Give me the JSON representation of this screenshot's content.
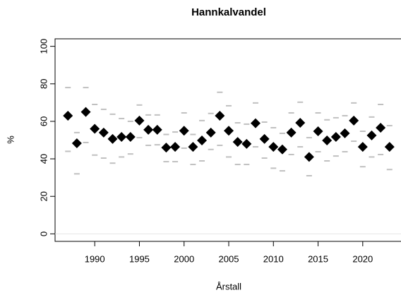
{
  "chart_data": {
    "type": "scatter",
    "title": "Hannkalvandel",
    "xlabel": "Årstall",
    "ylabel": "%",
    "x": [
      1987,
      1988,
      1989,
      1990,
      1991,
      1992,
      1993,
      1994,
      1995,
      1996,
      1997,
      1998,
      1999,
      2000,
      2001,
      2002,
      2003,
      2004,
      2005,
      2006,
      2007,
      2008,
      2009,
      2010,
      2011,
      2012,
      2013,
      2014,
      2015,
      2016,
      2017,
      2018,
      2019,
      2020,
      2021,
      2022,
      2023
    ],
    "values": [
      63,
      48.3,
      65,
      56,
      54,
      50.6,
      51.7,
      51.7,
      60.4,
      55.5,
      55.5,
      46,
      46.4,
      55,
      46.4,
      49.8,
      54,
      63,
      55,
      49,
      48,
      59,
      50.6,
      46.4,
      45,
      54,
      59.2,
      41,
      54.7,
      49.8,
      51.7,
      53.6,
      60.4,
      46.4,
      52.5,
      56.6,
      46.4
    ],
    "upper": [
      78,
      54,
      78,
      69,
      66.4,
      63.8,
      61.5,
      60,
      68.7,
      63.4,
      63.4,
      53,
      54.3,
      64.5,
      53,
      60.4,
      64.2,
      75.5,
      68.3,
      59.2,
      58.5,
      69.8,
      59.6,
      56.6,
      53.6,
      64.5,
      70.2,
      51.3,
      64.5,
      60.8,
      61.9,
      63,
      69.8,
      54.7,
      62.3,
      69,
      57.7
    ],
    "lower": [
      44,
      32,
      48.7,
      42,
      40.4,
      37.7,
      41,
      42.6,
      51.3,
      47.2,
      47.5,
      38.5,
      38.5,
      45.7,
      37,
      38.9,
      45,
      47.2,
      41,
      37,
      37,
      46.4,
      40.4,
      35,
      33.6,
      42.3,
      46.4,
      31,
      43.8,
      38.9,
      41.5,
      43.8,
      49.4,
      35.8,
      41,
      42.3,
      34.3
    ],
    "color": "#000000",
    "interval_color": "#c0c0c0",
    "xlim": [
      1985.56,
      2024.44
    ],
    "xticks": [
      1990,
      1995,
      2000,
      2005,
      2010,
      2015,
      2020
    ],
    "ylim": [
      -4,
      104
    ],
    "yticks": [
      0,
      20,
      40,
      60,
      80,
      100
    ],
    "reference_line": 0
  }
}
